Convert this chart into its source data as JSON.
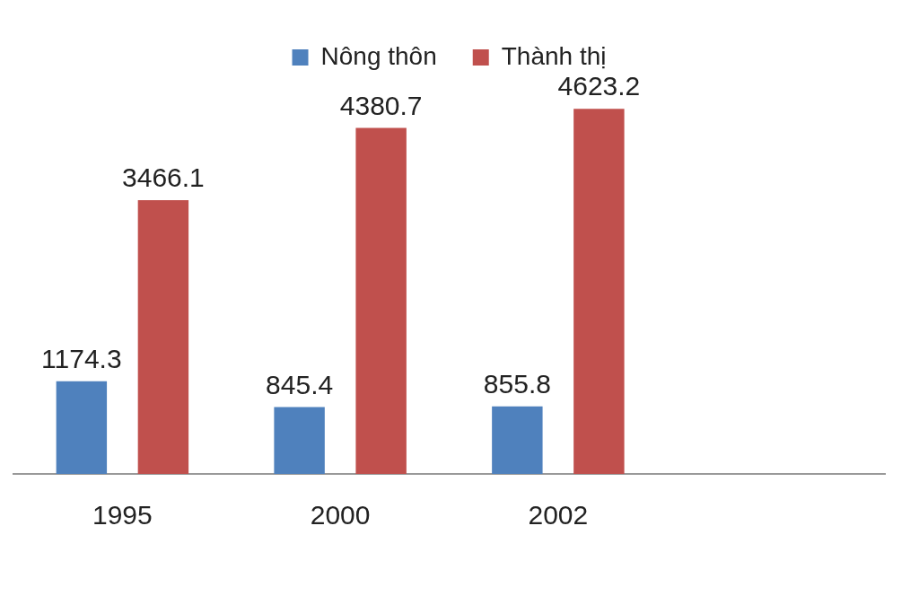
{
  "chart_data": {
    "type": "bar",
    "categories": [
      "1995",
      "2000",
      "2002",
      null
    ],
    "series": [
      {
        "name": "Nông thôn",
        "color": "#4f81bd",
        "values": [
          1174.3,
          845.4,
          855.8,
          null
        ]
      },
      {
        "name": "Thành thị",
        "color": "#c0504d",
        "values": [
          3466.1,
          4380.7,
          4623.2,
          null
        ]
      }
    ],
    "data_labels": true,
    "legend": "top"
  }
}
